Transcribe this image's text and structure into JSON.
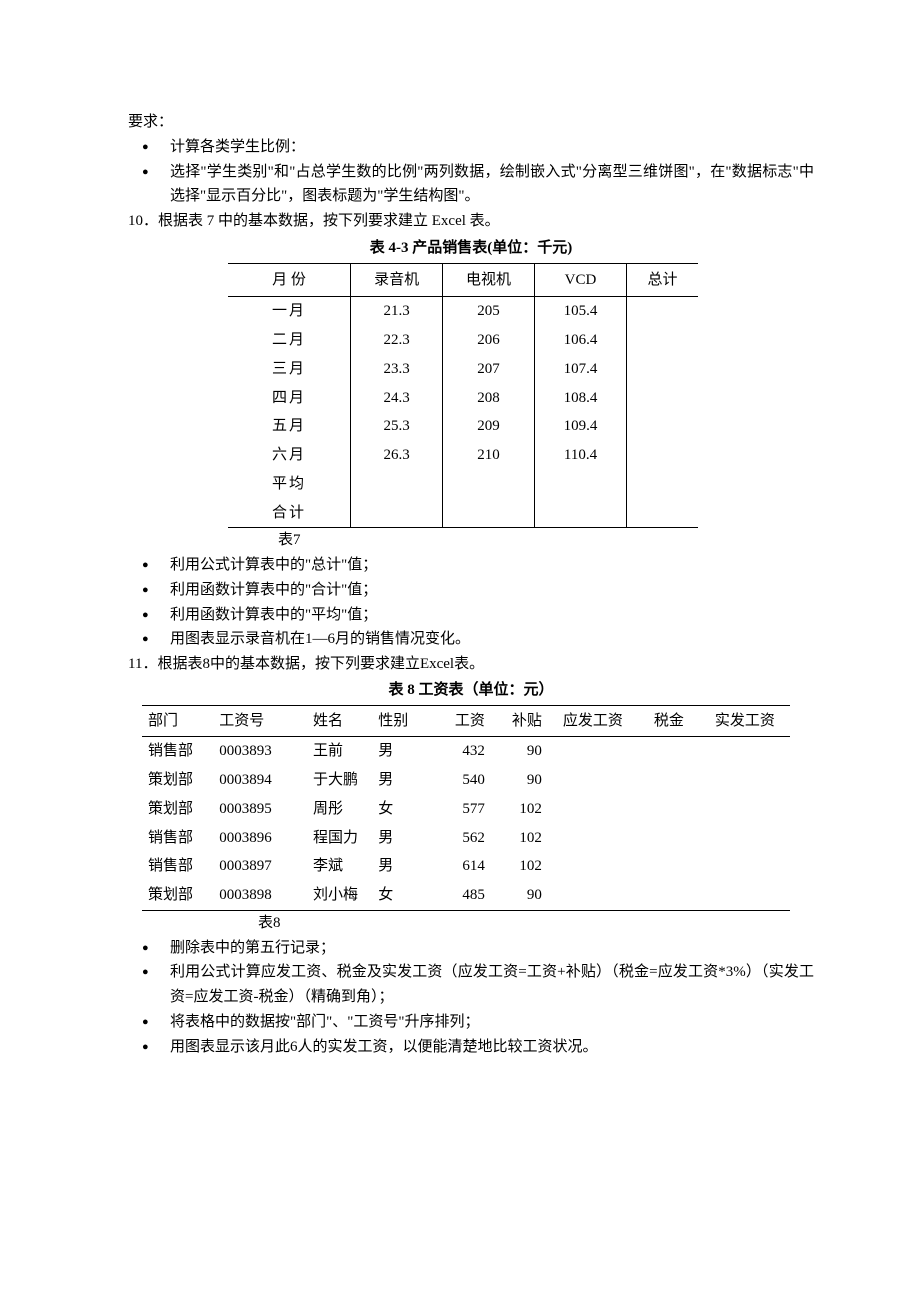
{
  "req_label": "要求：",
  "bullets_top": [
    "计算各类学生比例：",
    "选择\"学生类别\"和\"占总学生数的比例\"两列数据，绘制嵌入式\"分离型三维饼图\"，在\"数据标志\"中选择\"显示百分比\"，图表标题为\"学生结构图\"。"
  ],
  "num10": "10．根据表 7 中的基本数据，按下列要求建立 Excel 表。",
  "sales": {
    "caption": "表 4-3   产品销售表(单位：千元)",
    "month_head": "月    份",
    "cols": [
      "录音机",
      "电视机",
      "VCD",
      "总计"
    ],
    "rows": [
      {
        "m": "一月",
        "v": [
          "21.3",
          "205",
          "105.4",
          ""
        ]
      },
      {
        "m": "二月",
        "v": [
          "22.3",
          "206",
          "106.4",
          ""
        ]
      },
      {
        "m": "三月",
        "v": [
          "23.3",
          "207",
          "107.4",
          ""
        ]
      },
      {
        "m": "四月",
        "v": [
          "24.3",
          "208",
          "108.4",
          ""
        ]
      },
      {
        "m": "五月",
        "v": [
          "25.3",
          "209",
          "109.4",
          ""
        ]
      },
      {
        "m": "六月",
        "v": [
          "26.3",
          "210",
          "110.4",
          ""
        ]
      },
      {
        "m": "平均",
        "v": [
          "",
          "",
          "",
          ""
        ]
      },
      {
        "m": "合计",
        "v": [
          "",
          "",
          "",
          ""
        ]
      }
    ],
    "label": "表7"
  },
  "bullets_mid": [
    "利用公式计算表中的\"总计\"值；",
    "利用函数计算表中的\"合计\"值；",
    "利用函数计算表中的\"平均\"值；",
    "用图表显示录音机在1—6月的销售情况变化。"
  ],
  "num11": "11．根据表8中的基本数据，按下列要求建立Excel表。",
  "salary": {
    "caption": "表 8 工资表（单位：元）",
    "cols": [
      "部门",
      "工资号",
      "姓名",
      "性别",
      "工资",
      "补贴",
      "应发工资",
      "税金",
      "实发工资"
    ],
    "rows": [
      [
        "销售部",
        "0003893",
        "王前",
        "男",
        "432",
        "90",
        "",
        "",
        ""
      ],
      [
        "策划部",
        "0003894",
        "于大鹏",
        "男",
        "540",
        "90",
        "",
        "",
        ""
      ],
      [
        "策划部",
        "0003895",
        "周彤",
        "女",
        "577",
        "102",
        "",
        "",
        ""
      ],
      [
        "销售部",
        "0003896",
        "程国力",
        "男",
        "562",
        "102",
        "",
        "",
        ""
      ],
      [
        "销售部",
        "0003897",
        "李斌",
        "男",
        "614",
        "102",
        "",
        "",
        ""
      ],
      [
        "策划部",
        "0003898",
        "刘小梅",
        "女",
        "485",
        "90",
        "",
        "",
        ""
      ]
    ],
    "label": "表8"
  },
  "bullets_bot": [
    "删除表中的第五行记录；",
    "利用公式计算应发工资、税金及实发工资（应发工资=工资+补贴）（税金=应发工资*3%）（实发工资=应发工资-税金）（精确到角）；",
    "将表格中的数据按\"部门\"、\"工资号\"升序排列；",
    "用图表显示该月此6人的实发工资，以便能清楚地比较工资状况。"
  ],
  "style": {
    "text_color": "#000000",
    "bg_color": "#ffffff",
    "font_size_pt": 11,
    "border_color": "#000000"
  }
}
